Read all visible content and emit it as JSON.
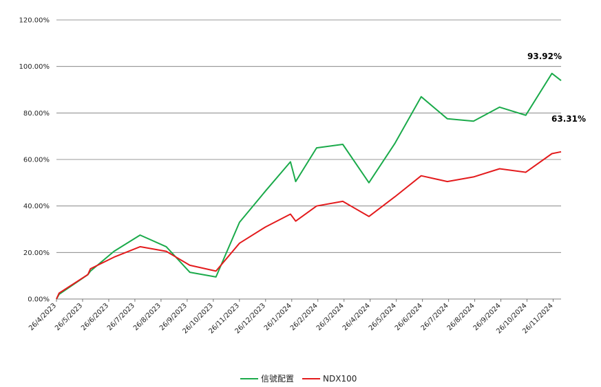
{
  "chart_data": {
    "type": "line",
    "title": "",
    "xlabel": "",
    "ylabel": "",
    "ylim": [
      0,
      120
    ],
    "y_ticks": [
      "0.00%",
      "20.00%",
      "40.00%",
      "60.00%",
      "80.00%",
      "100.00%",
      "120.00%"
    ],
    "y_tick_values": [
      0,
      20,
      40,
      60,
      80,
      100,
      120
    ],
    "x_ticks": [
      "26/4/2023",
      "26/5/2023",
      "26/6/2023",
      "26/7/2023",
      "26/8/2023",
      "26/9/2023",
      "26/10/2023",
      "26/11/2023",
      "26/12/2023",
      "26/1/2024",
      "26/2/2024",
      "26/3/2024",
      "26/4/2024",
      "26/5/2024",
      "26/6/2024",
      "26/7/2024",
      "26/8/2024",
      "26/9/2024",
      "26/10/2024",
      "26/11/2024"
    ],
    "grid": "horizontal",
    "legend_position": "bottom",
    "series": [
      {
        "name": "信號配置",
        "color": "#1aaa4a",
        "x": [
          0,
          0.1,
          1.2,
          1.3,
          2.2,
          3.2,
          4.2,
          5.1,
          6.1,
          7.0,
          8.0,
          8.95,
          9.15,
          9.95,
          10.95,
          11.95,
          12.95,
          13.95,
          14.95,
          15.95,
          16.95,
          17.95,
          18.95,
          19.3
        ],
        "y": [
          0,
          2,
          10.5,
          12,
          20.5,
          27.5,
          22.5,
          11.5,
          9.5,
          33,
          46.5,
          59,
          50.5,
          65,
          66.5,
          50,
          67,
          87,
          77.5,
          76.5,
          82.5,
          79,
          97,
          93.92
        ]
      },
      {
        "name": "NDX100",
        "color": "#e31a1c",
        "x": [
          0,
          0.1,
          1.2,
          1.3,
          2.2,
          3.2,
          4.2,
          5.1,
          6.1,
          7.0,
          8.0,
          8.95,
          9.15,
          9.95,
          10.95,
          11.95,
          12.95,
          13.95,
          14.95,
          15.95,
          16.95,
          17.95,
          18.95,
          19.3
        ],
        "y": [
          0,
          2.5,
          10.5,
          13,
          18,
          22.5,
          20.5,
          14.5,
          12,
          24,
          31,
          36.5,
          33.5,
          40,
          42,
          35.5,
          44,
          53,
          50.5,
          52.5,
          56,
          54.5,
          62.5,
          63.31
        ]
      }
    ],
    "annotations": [
      {
        "text": "93.92%",
        "series": 0
      },
      {
        "text": "63.31%",
        "series": 1
      }
    ]
  }
}
